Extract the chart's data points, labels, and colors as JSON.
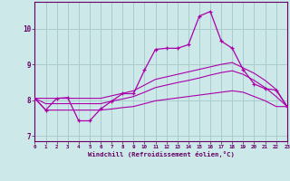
{
  "xlabel": "Windchill (Refroidissement éolien,°C)",
  "x_hours": [
    0,
    1,
    2,
    3,
    4,
    5,
    6,
    7,
    8,
    9,
    10,
    11,
    12,
    13,
    14,
    15,
    16,
    17,
    18,
    19,
    20,
    21,
    22,
    23
  ],
  "main_line": [
    8.05,
    7.72,
    8.05,
    8.07,
    7.42,
    7.42,
    7.75,
    7.97,
    8.18,
    8.18,
    8.84,
    9.42,
    9.45,
    9.45,
    9.55,
    10.35,
    10.48,
    9.65,
    9.45,
    8.85,
    8.45,
    8.32,
    8.28,
    7.82
  ],
  "line_upper": [
    8.05,
    8.05,
    8.05,
    8.05,
    8.05,
    8.05,
    8.05,
    8.12,
    8.19,
    8.26,
    8.42,
    8.58,
    8.65,
    8.72,
    8.79,
    8.86,
    8.93,
    9.0,
    9.05,
    8.9,
    8.75,
    8.55,
    8.3,
    7.82
  ],
  "line_mid": [
    8.05,
    7.9,
    7.9,
    7.9,
    7.9,
    7.9,
    7.9,
    7.97,
    8.03,
    8.1,
    8.22,
    8.35,
    8.42,
    8.49,
    8.55,
    8.62,
    8.7,
    8.77,
    8.82,
    8.72,
    8.55,
    8.35,
    8.1,
    7.82
  ],
  "line_lower": [
    8.05,
    7.72,
    7.72,
    7.72,
    7.72,
    7.72,
    7.72,
    7.75,
    7.79,
    7.82,
    7.9,
    7.98,
    8.02,
    8.06,
    8.1,
    8.14,
    8.18,
    8.22,
    8.26,
    8.22,
    8.1,
    7.98,
    7.82,
    7.82
  ],
  "bg_color": "#cce8e8",
  "grid_color": "#aacccc",
  "line_color": "#aa00aa",
  "ylim": [
    6.85,
    10.75
  ],
  "yticks": [
    7,
    8,
    9,
    10
  ],
  "xlim": [
    0,
    23
  ]
}
